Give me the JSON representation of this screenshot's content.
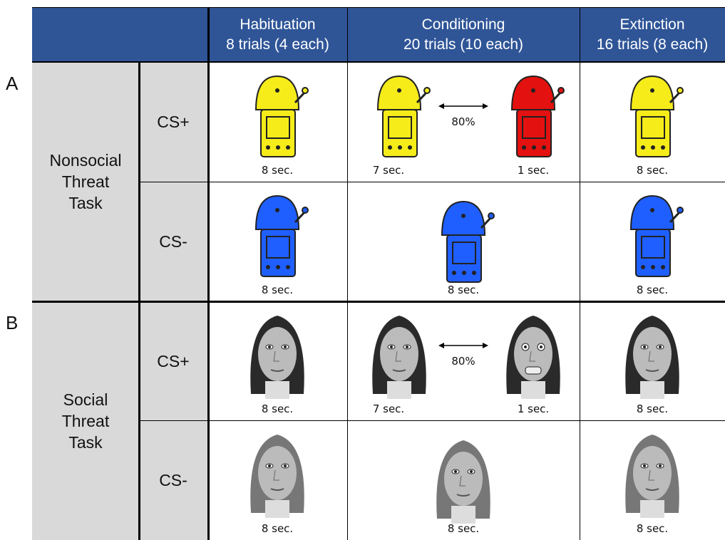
{
  "header": {
    "columns": [
      {
        "title": "Habituation",
        "subtitle": "8 trials (4 each)"
      },
      {
        "title": "Conditioning",
        "subtitle": "20 trials (10 each)"
      },
      {
        "title": "Extinction",
        "subtitle": "16 trials (8 each)"
      }
    ]
  },
  "sections": [
    {
      "label": "A",
      "task": [
        "Nonsocial",
        "Threat",
        "Task"
      ],
      "rows": [
        {
          "stimulus": "CS+",
          "habituation": "8 sec.",
          "conditioning": {
            "left": "7 sec.",
            "right": "1 sec.",
            "probability": "80%"
          },
          "extinction": "8 sec."
        },
        {
          "stimulus": "CS-",
          "habituation": "8 sec.",
          "conditioning": {
            "duration": "8 sec."
          },
          "extinction": "8 sec."
        }
      ]
    },
    {
      "label": "B",
      "task": [
        "Social",
        "Threat",
        "Task"
      ],
      "rows": [
        {
          "stimulus": "CS+",
          "habituation": "8 sec.",
          "conditioning": {
            "left": "7 sec.",
            "right": "1 sec.",
            "probability": "80%"
          },
          "extinction": "8 sec."
        },
        {
          "stimulus": "CS-",
          "habituation": "8 sec.",
          "conditioning": {
            "duration": "8 sec."
          },
          "extinction": "8 sec."
        }
      ]
    }
  ]
}
